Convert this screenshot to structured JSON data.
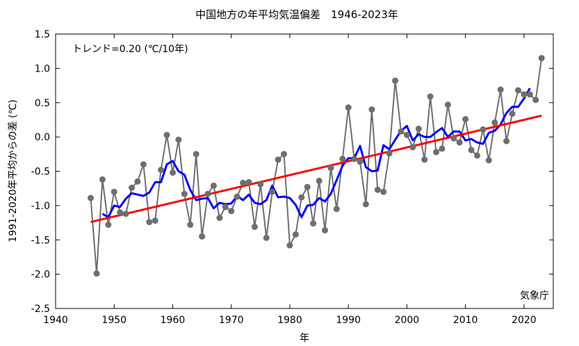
{
  "chart_data": {
    "type": "line",
    "title": "中国地方の年平均気温偏差　1946-2023年",
    "xlabel": "年",
    "ylabel": "1991-2020年平均からの差 (℃)",
    "trend_text": "トレンド=0.20 (℃/10年)",
    "source_text": "気象庁",
    "xlim": [
      1940,
      2025
    ],
    "ylim": [
      -2.5,
      1.5
    ],
    "x_ticks": [
      1940,
      1950,
      1960,
      1970,
      1980,
      1990,
      2000,
      2010,
      2020
    ],
    "y_ticks": [
      1.5,
      1.0,
      0.5,
      0.0,
      -0.5,
      -1.0,
      -1.5,
      -2.0,
      -2.5
    ],
    "x_tick_labels": [
      "1940",
      "1950",
      "1960",
      "1970",
      "1980",
      "1990",
      "2000",
      "2010",
      "2020"
    ],
    "y_tick_labels": [
      "1.5",
      "1.0",
      "0.5",
      "0.0",
      "-0.5",
      "-1.0",
      "-1.5",
      "-2.0",
      "-2.5"
    ],
    "grid": false,
    "colors": {
      "annual": "#6e6e6e",
      "moving_average": "#0000ff",
      "trend": "#ff0000"
    },
    "series": [
      {
        "key": "annual",
        "style": "line+markers",
        "x": [
          1946,
          1947,
          1948,
          1949,
          1950,
          1951,
          1952,
          1953,
          1954,
          1955,
          1956,
          1957,
          1958,
          1959,
          1960,
          1961,
          1962,
          1963,
          1964,
          1965,
          1966,
          1967,
          1968,
          1969,
          1970,
          1971,
          1972,
          1973,
          1974,
          1975,
          1976,
          1977,
          1978,
          1979,
          1980,
          1981,
          1982,
          1983,
          1984,
          1985,
          1986,
          1987,
          1988,
          1989,
          1990,
          1991,
          1992,
          1993,
          1994,
          1995,
          1996,
          1997,
          1998,
          1999,
          2000,
          2001,
          2002,
          2003,
          2004,
          2005,
          2006,
          2007,
          2008,
          2009,
          2010,
          2011,
          2012,
          2013,
          2014,
          2015,
          2016,
          2017,
          2018,
          2019,
          2020,
          2021,
          2022,
          2023
        ],
        "values": [
          -0.89,
          -1.99,
          -0.62,
          -1.28,
          -0.8,
          -1.1,
          -1.12,
          -0.74,
          -0.65,
          -0.4,
          -1.24,
          -1.22,
          -0.48,
          0.03,
          -0.52,
          -0.04,
          -0.83,
          -1.28,
          -0.25,
          -1.45,
          -0.83,
          -0.71,
          -1.18,
          -1.02,
          -1.08,
          -0.87,
          -0.67,
          -0.66,
          -1.31,
          -0.69,
          -1.47,
          -0.8,
          -0.33,
          -0.25,
          -1.58,
          -1.42,
          -0.88,
          -0.73,
          -1.26,
          -0.64,
          -1.36,
          -0.45,
          -1.05,
          -0.32,
          0.43,
          -0.32,
          -0.36,
          -0.98,
          0.4,
          -0.77,
          -0.8,
          -0.24,
          0.82,
          0.08,
          0.03,
          -0.15,
          0.12,
          -0.33,
          0.59,
          -0.22,
          -0.17,
          0.47,
          -0.02,
          -0.08,
          0.26,
          -0.19,
          -0.27,
          0.11,
          -0.34,
          0.21,
          0.69,
          -0.06,
          0.34,
          0.68,
          0.62,
          0.62,
          0.54,
          1.15
        ]
      },
      {
        "key": "moving_average",
        "style": "line",
        "x": [
          1948,
          1949,
          1950,
          1951,
          1952,
          1953,
          1954,
          1955,
          1956,
          1957,
          1958,
          1959,
          1960,
          1961,
          1962,
          1963,
          1964,
          1965,
          1966,
          1967,
          1968,
          1969,
          1970,
          1971,
          1972,
          1973,
          1974,
          1975,
          1976,
          1977,
          1978,
          1979,
          1980,
          1981,
          1982,
          1983,
          1984,
          1985,
          1986,
          1987,
          1988,
          1989,
          1990,
          1991,
          1992,
          1993,
          1994,
          1995,
          1996,
          1997,
          1998,
          1999,
          2000,
          2001,
          2002,
          2003,
          2004,
          2005,
          2006,
          2007,
          2008,
          2009,
          2010,
          2011,
          2012,
          2013,
          2014,
          2015,
          2016,
          2017,
          2018,
          2019,
          2020,
          2021
        ],
        "values": [
          -1.12,
          -1.17,
          -1.0,
          -1.02,
          -0.9,
          -0.82,
          -0.84,
          -0.86,
          -0.81,
          -0.66,
          -0.66,
          -0.4,
          -0.35,
          -0.5,
          -0.55,
          -0.77,
          -0.92,
          -0.9,
          -0.89,
          -1.04,
          -0.96,
          -0.98,
          -0.97,
          -0.86,
          -0.92,
          -0.84,
          -0.96,
          -0.98,
          -0.92,
          -0.71,
          -0.88,
          -0.87,
          -0.89,
          -0.99,
          -1.17,
          -1.0,
          -0.99,
          -0.89,
          -0.94,
          -0.83,
          -0.63,
          -0.42,
          -0.31,
          -0.31,
          -0.13,
          -0.44,
          -0.5,
          -0.49,
          -0.12,
          -0.18,
          -0.04,
          0.09,
          0.16,
          -0.05,
          0.04,
          0.0,
          0.0,
          0.07,
          0.13,
          0.0,
          0.08,
          0.08,
          -0.05,
          -0.03,
          -0.08,
          -0.1,
          0.06,
          0.09,
          0.18,
          0.35,
          0.44,
          0.44,
          0.56,
          0.71
        ]
      },
      {
        "key": "trend",
        "style": "line",
        "x": [
          1946,
          2023
        ],
        "values": [
          -1.24,
          0.31
        ]
      }
    ]
  }
}
